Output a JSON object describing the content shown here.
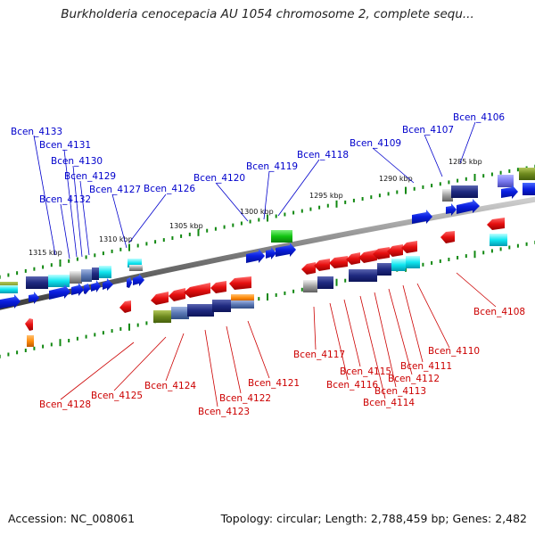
{
  "title": "Burkholderia cenocepacia AU 1054 chromosome 2, complete sequ...",
  "footer": {
    "accession": "Accession: NC_008061",
    "summary": "Topology: circular; Length: 2,788,459 bp; Genes: 2,482"
  },
  "colors": {
    "forward_label": "#0000cc",
    "reverse_label": "#cc0000",
    "backbone": "#808080",
    "tick": "#118811"
  },
  "scale_labels": [
    "1315 kbp",
    "1310 kbp",
    "1305 kbp",
    "1300 kbp",
    "1295 kbp",
    "1290 kbp",
    "1285 kbp"
  ],
  "top_genes": [
    "Bcen_4133",
    "Bcen_4131",
    "Bcen_4130",
    "Bcen_4129",
    "Bcen_4132",
    "Bcen_4127",
    "Bcen_4126",
    "Bcen_4120",
    "Bcen_4119",
    "Bcen_4118",
    "Bcen_4109",
    "Bcen_4107",
    "Bcen_4106"
  ],
  "bottom_genes": [
    "Bcen_4128",
    "Bcen_4125",
    "Bcen_4124",
    "Bcen_4123",
    "Bcen_4122",
    "Bcen_4121",
    "Bcen_4117",
    "Bcen_4116",
    "Bcen_4115",
    "Bcen_4114",
    "Bcen_4113",
    "Bcen_4112",
    "Bcen_4111",
    "Bcen_4110",
    "Bcen_4108"
  ]
}
